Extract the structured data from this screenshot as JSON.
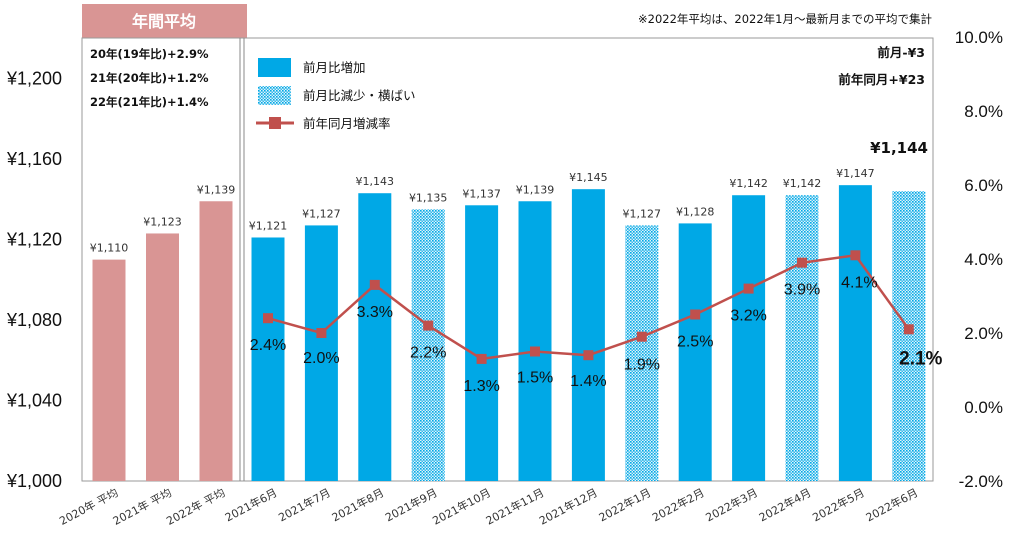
{
  "chart_data": {
    "type": "bar",
    "title": "",
    "annotation_top": "※2022年平均は、2022年1月～最新月までの平均で集計",
    "header_label": "年間平均",
    "avg_notes": [
      "20年(19年比)+2.9%",
      "21年(20年比)+1.2%",
      "22年(21年比)+1.4%"
    ],
    "right_notes": [
      "前月-¥3",
      "前年同月+¥23"
    ],
    "latest_value_label": "¥1,144",
    "categories": [
      "2020年 平均",
      "2021年 平均",
      "2022年 平均",
      "2021年6月",
      "2021年7月",
      "2021年8月",
      "2021年9月",
      "2021年10月",
      "2021年11月",
      "2021年12月",
      "2022年1月",
      "2022年2月",
      "2022年3月",
      "2022年4月",
      "2022年5月",
      "2022年6月"
    ],
    "values": [
      1110,
      1123,
      1139,
      1121,
      1127,
      1143,
      1135,
      1137,
      1139,
      1145,
      1127,
      1128,
      1142,
      1142,
      1147,
      1144
    ],
    "value_labels": [
      "¥1,110",
      "¥1,123",
      "¥1,139",
      "¥1,121",
      "¥1,127",
      "¥1,143",
      "¥1,135",
      "¥1,137",
      "¥1,139",
      "¥1,145",
      "¥1,127",
      "¥1,128",
      "¥1,142",
      "¥1,142",
      "¥1,147",
      ""
    ],
    "bar_kinds": [
      "avg",
      "avg",
      "avg",
      "increase",
      "increase",
      "increase",
      "decrease",
      "increase",
      "increase",
      "increase",
      "decrease",
      "increase",
      "increase",
      "decrease",
      "increase",
      "decrease"
    ],
    "yoy_line": {
      "name": "前年同月増減率",
      "values": [
        2.4,
        2.0,
        3.3,
        2.2,
        1.3,
        1.5,
        1.4,
        1.9,
        2.5,
        3.2,
        3.9,
        4.1,
        2.1
      ],
      "labels": [
        "2.4%",
        "2.0%",
        "3.3%",
        "2.2%",
        "1.3%",
        "1.5%",
        "1.4%",
        "1.9%",
        "2.5%",
        "3.2%",
        "3.9%",
        "4.1%",
        "2.1%"
      ]
    },
    "legend": [
      "前月比増加",
      "前月比減少・横ばい",
      "前年同月増減率"
    ],
    "ylim": [
      1000,
      1200
    ],
    "yticks": [
      1000,
      1040,
      1080,
      1120,
      1160,
      1200
    ],
    "ytick_labels": [
      "¥1,000",
      "¥1,040",
      "¥1,080",
      "¥1,120",
      "¥1,160",
      "¥1,200"
    ],
    "y2lim": [
      -2.0,
      10.0
    ],
    "y2ticks": [
      -2,
      0,
      2,
      4,
      6,
      8,
      10
    ],
    "y2tick_labels": [
      "-2.0%",
      "0.0%",
      "2.0%",
      "4.0%",
      "6.0%",
      "8.0%",
      "10.0%"
    ],
    "colors": {
      "avg": "#d99594",
      "increase": "#00a8e6",
      "decrease": "#00a8e6",
      "line": "#c0504d",
      "header": "#d99594"
    }
  }
}
